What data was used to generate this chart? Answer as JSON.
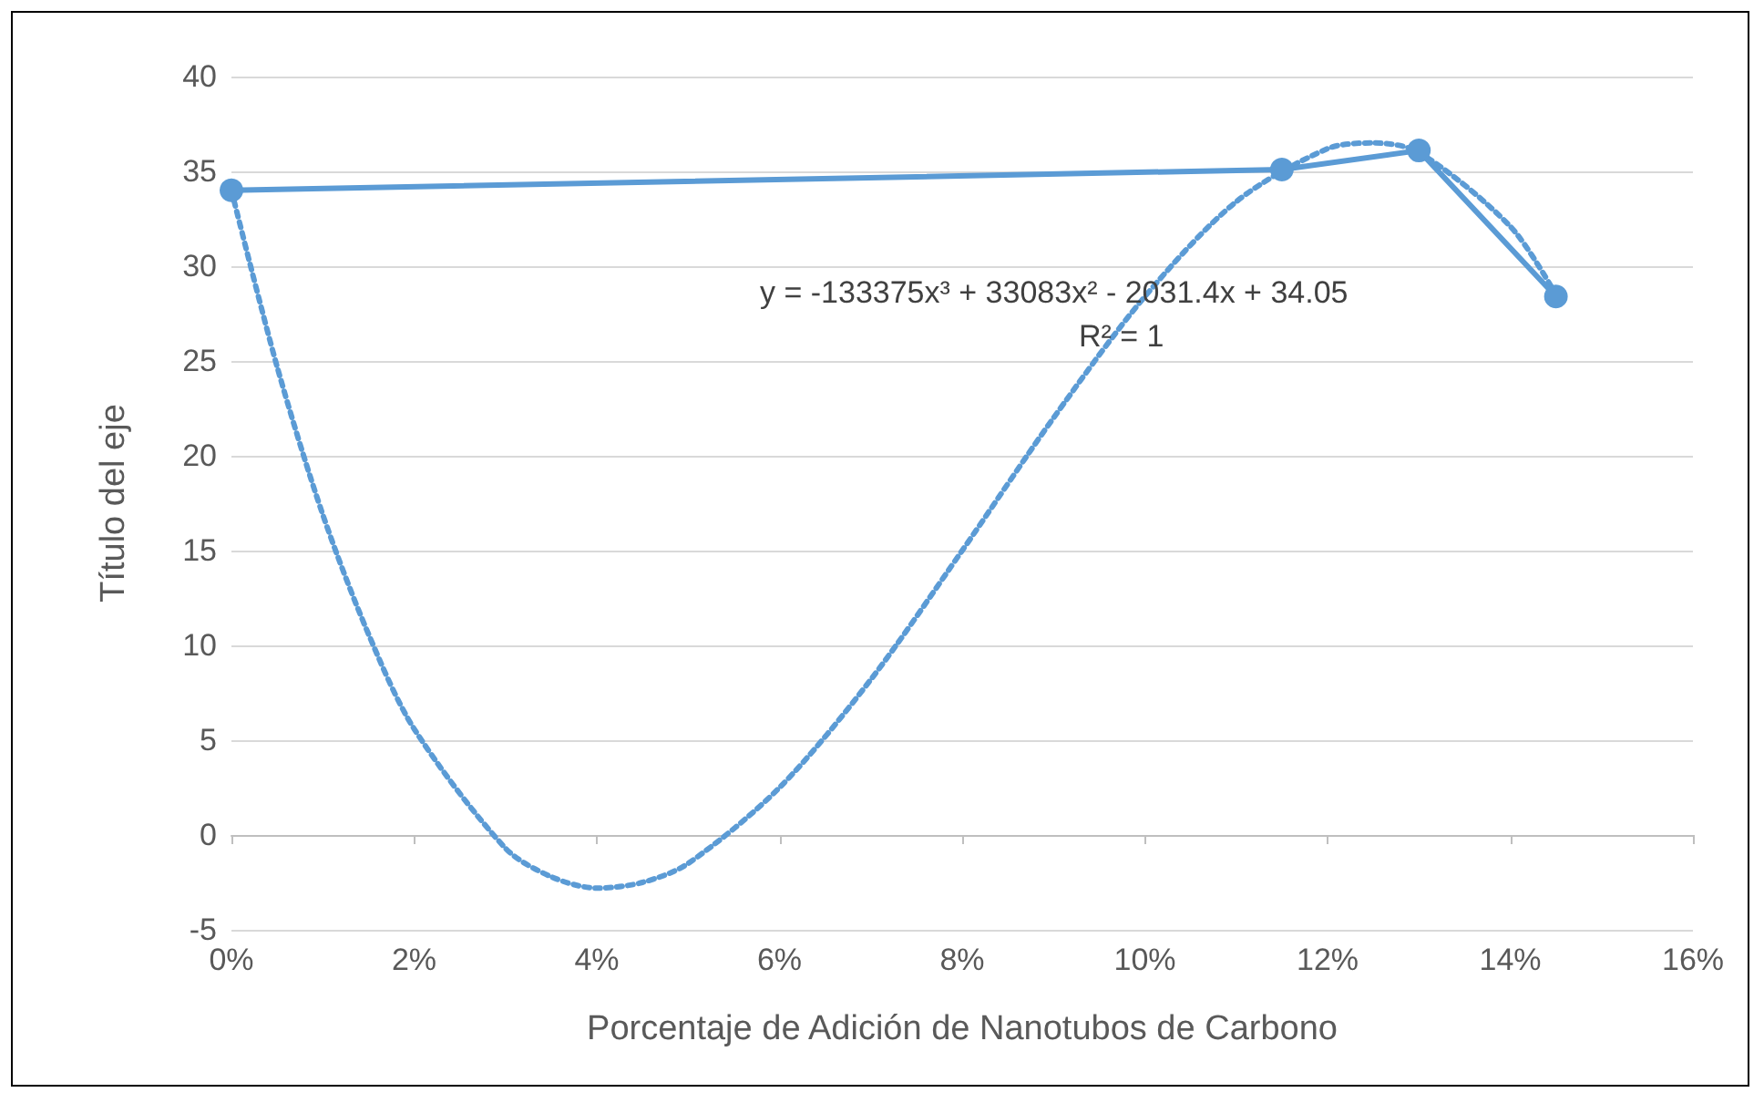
{
  "chart_data": {
    "type": "line",
    "xlabel": "Porcentaje de Adición de Nanotubos de Carbono",
    "ylabel": "Título del eje",
    "series": [
      {
        "color": "#5b9bd5",
        "x": [
          0,
          0.115,
          0.13,
          0.145
        ],
        "values": [
          34,
          35.1,
          36.1,
          28.4
        ],
        "marker": "circle",
        "line_style": "solid"
      },
      {
        "type": "line",
        "color": "#5b9bd5",
        "marker": "none",
        "line_style": "dotted",
        "x": [
          0,
          0.005,
          0.01,
          0.015,
          0.02,
          0.03,
          0.035,
          0.04,
          0.045,
          0.05,
          0.06,
          0.07,
          0.08,
          0.09,
          0.1,
          0.11,
          0.12,
          0.125,
          0.13,
          0.14,
          0.145
        ],
        "values": [
          34,
          24.7,
          16.9,
          10.6,
          5.6,
          -0.7,
          -2.2,
          -2.8,
          -2.5,
          -1.5,
          2.5,
          8.2,
          15,
          22,
          28.4,
          33.4,
          36.2,
          36.5,
          36,
          32.1,
          28.5
        ]
      }
    ],
    "annotations": [
      "y = -133375x³ + 33083x² - 2031.4x + 34.05",
      "R² = 1"
    ],
    "xlim": [
      0,
      0.16
    ],
    "xticks": [
      {
        "value": 0,
        "label": "0%"
      },
      {
        "value": 0.02,
        "label": "2%"
      },
      {
        "value": 0.04,
        "label": "4%"
      },
      {
        "value": 0.06,
        "label": "6%"
      },
      {
        "value": 0.08,
        "label": "8%"
      },
      {
        "value": 0.1,
        "label": "10%"
      },
      {
        "value": 0.12,
        "label": "12%"
      },
      {
        "value": 0.14,
        "label": "14%"
      },
      {
        "value": 0.16,
        "label": "16%"
      }
    ],
    "ylim": [
      -5,
      40
    ],
    "yticks": [
      -5,
      0,
      5,
      10,
      15,
      20,
      25,
      30,
      35,
      40
    ],
    "grid": "y"
  }
}
